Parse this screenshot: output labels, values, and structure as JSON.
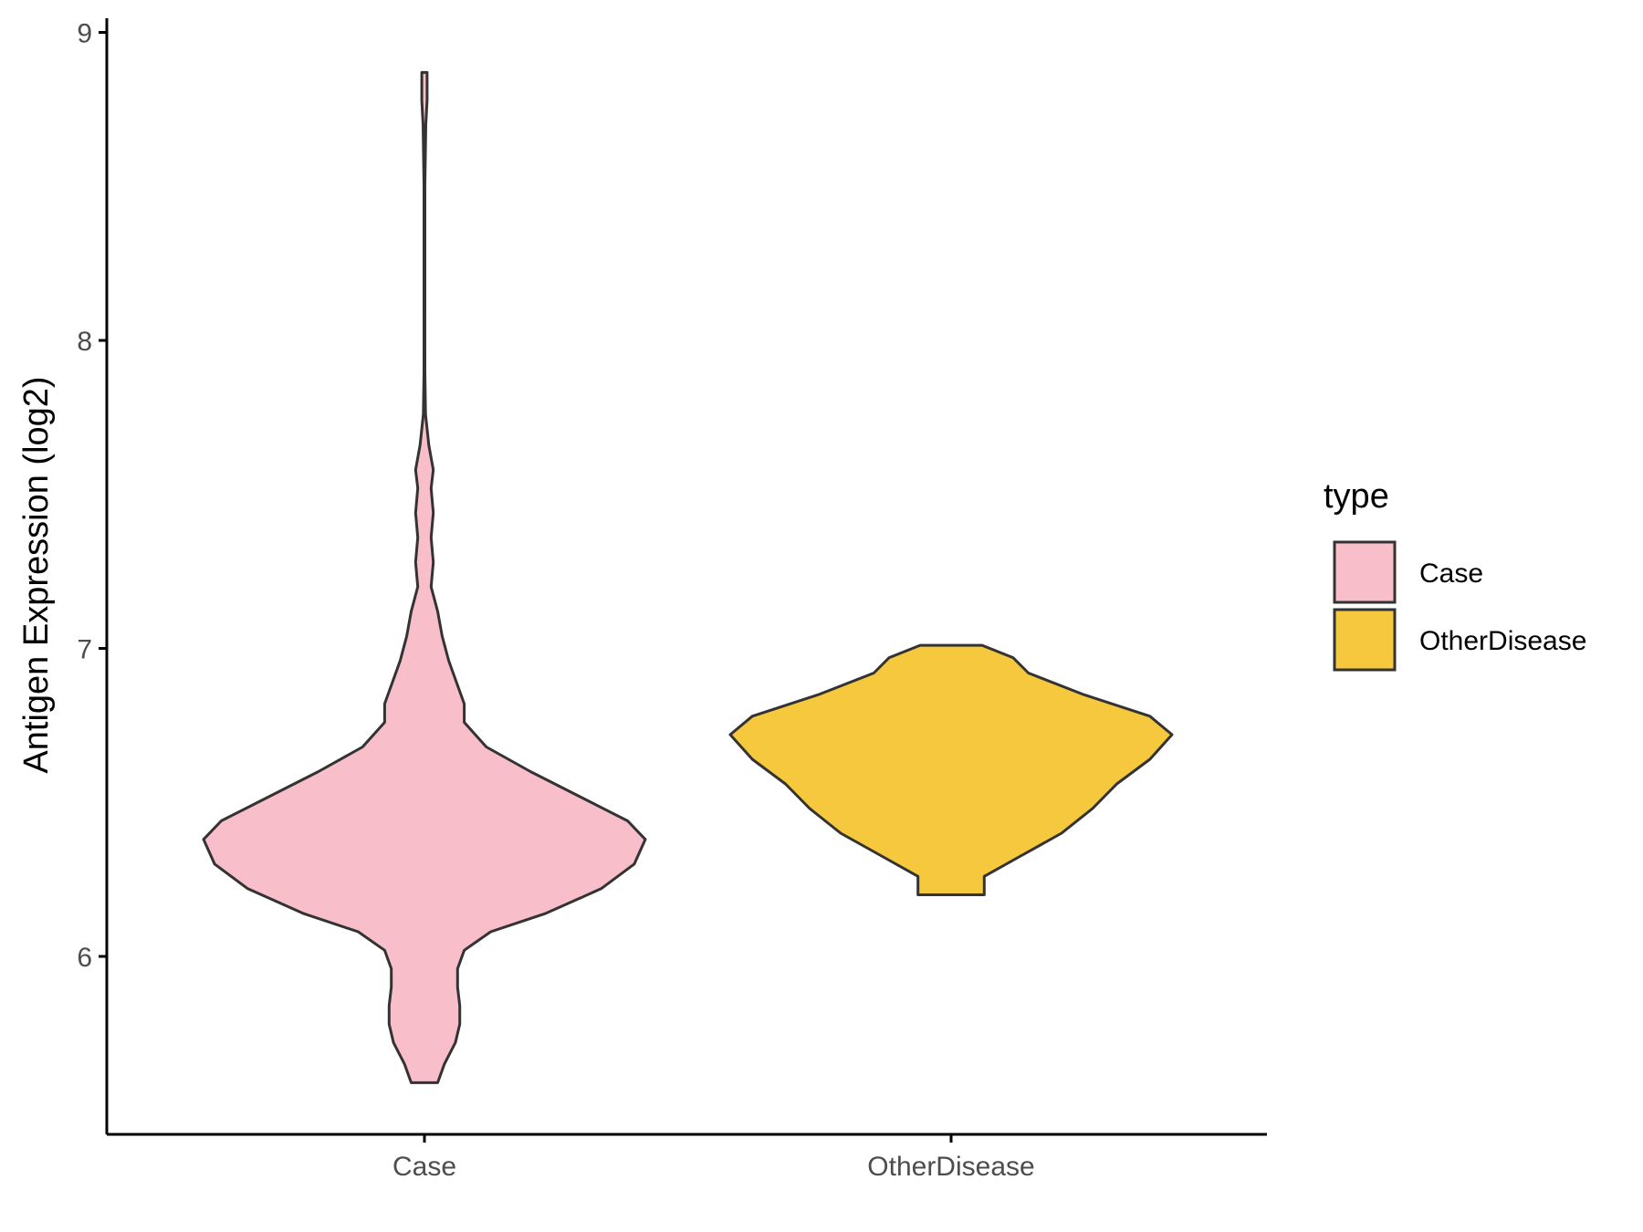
{
  "chart_data": {
    "type": "violin",
    "title": "",
    "xlabel": "",
    "ylabel": "Antigen Expression (log2)",
    "ylim": [
      5.45,
      9.05
    ],
    "yticks": [
      6,
      7,
      8,
      9
    ],
    "yticks_labels": [
      "6",
      "7",
      "8",
      "9"
    ],
    "categories": [
      "Case",
      "OtherDisease"
    ],
    "legend": {
      "title": "type",
      "position": "right",
      "entries": [
        "Case",
        "OtherDisease"
      ]
    },
    "grid": false,
    "series": [
      {
        "name": "Case",
        "color": "#F8BFCB",
        "range": [
          5.59,
          8.87
        ],
        "density_profile": [
          [
            5.59,
            0.06
          ],
          [
            5.65,
            0.09
          ],
          [
            5.72,
            0.14
          ],
          [
            5.78,
            0.16
          ],
          [
            5.84,
            0.16
          ],
          [
            5.9,
            0.15
          ],
          [
            5.96,
            0.15
          ],
          [
            6.02,
            0.18
          ],
          [
            6.08,
            0.3
          ],
          [
            6.14,
            0.55
          ],
          [
            6.22,
            0.8
          ],
          [
            6.3,
            0.95
          ],
          [
            6.38,
            1.0
          ],
          [
            6.44,
            0.92
          ],
          [
            6.52,
            0.7
          ],
          [
            6.6,
            0.48
          ],
          [
            6.68,
            0.28
          ],
          [
            6.76,
            0.18
          ],
          [
            6.82,
            0.18
          ],
          [
            6.88,
            0.15
          ],
          [
            6.96,
            0.11
          ],
          [
            7.04,
            0.08
          ],
          [
            7.12,
            0.06
          ],
          [
            7.2,
            0.03
          ],
          [
            7.28,
            0.04
          ],
          [
            7.36,
            0.03
          ],
          [
            7.44,
            0.04
          ],
          [
            7.52,
            0.03
          ],
          [
            7.58,
            0.04
          ],
          [
            7.66,
            0.02
          ],
          [
            7.76,
            0.005
          ],
          [
            7.9,
            0.002
          ],
          [
            8.2,
            0.002
          ],
          [
            8.5,
            0.002
          ],
          [
            8.7,
            0.006
          ],
          [
            8.78,
            0.012
          ],
          [
            8.87,
            0.012
          ]
        ]
      },
      {
        "name": "OtherDisease",
        "color": "#F6C83E",
        "range": [
          6.2,
          7.01
        ],
        "density_profile": [
          [
            6.2,
            0.15
          ],
          [
            6.26,
            0.15
          ],
          [
            6.32,
            0.3
          ],
          [
            6.4,
            0.5
          ],
          [
            6.48,
            0.64
          ],
          [
            6.56,
            0.75
          ],
          [
            6.64,
            0.9
          ],
          [
            6.72,
            1.0
          ],
          [
            6.78,
            0.9
          ],
          [
            6.85,
            0.6
          ],
          [
            6.92,
            0.35
          ],
          [
            6.97,
            0.28
          ],
          [
            7.01,
            0.14
          ]
        ]
      }
    ],
    "colors": {
      "outline": "#333333",
      "axis": "#000000"
    }
  }
}
